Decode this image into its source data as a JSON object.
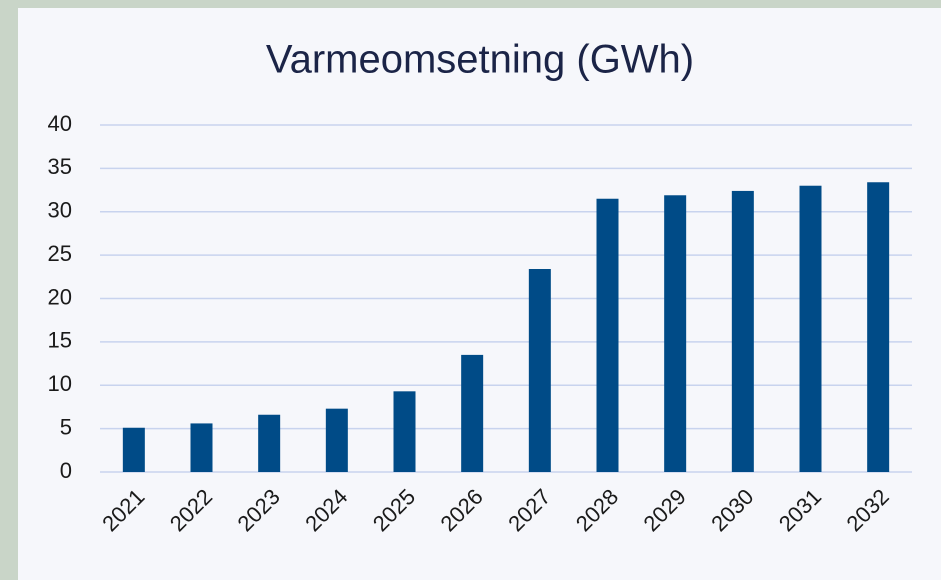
{
  "chart_data": {
    "type": "bar",
    "title": "Varmeomsetning (GWh)",
    "categories": [
      "2021",
      "2022",
      "2023",
      "2024",
      "2025",
      "2026",
      "2027",
      "2028",
      "2029",
      "2030",
      "2031",
      "2032"
    ],
    "values": [
      5.1,
      5.6,
      6.6,
      7.3,
      9.3,
      13.5,
      23.4,
      31.5,
      31.9,
      32.4,
      33.0,
      33.4
    ],
    "color": "#004b87",
    "ylim": [
      0,
      40
    ],
    "yticks": [
      0,
      5,
      10,
      15,
      20,
      25,
      30,
      35,
      40
    ],
    "grid": true
  }
}
